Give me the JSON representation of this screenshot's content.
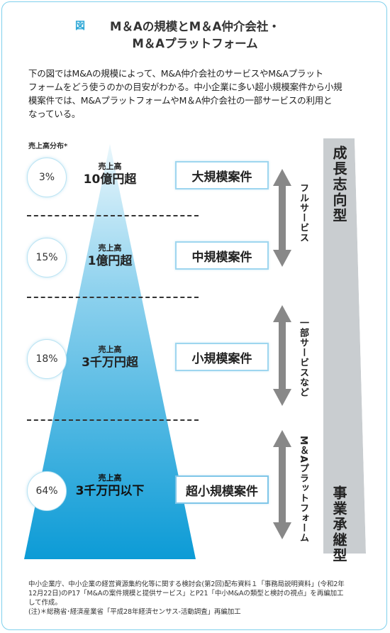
{
  "figure_label": "図",
  "title_line1": "M＆Aの規模とM＆A仲介会社・",
  "title_line2": "M＆Aプラットフォーム",
  "intro_line1": "下の図ではM&Aの規模によって、M&A仲介会社のサービスやM&Aプラット",
  "intro_line2": "フォームをどう使うのかの目安がわかる。中小企業に多い超小規模案件から小規",
  "intro_line3": "模案件では、M&AプラットフォームやM＆A仲介会社の一部サービスの利用と",
  "intro_line4": "なっている。",
  "distribution_label": "売上高分布*",
  "tiers": [
    {
      "share": "3%",
      "sales_label": "売上高",
      "threshold": "10億円超",
      "category": "大規模案件"
    },
    {
      "share": "15%",
      "sales_label": "売上高",
      "threshold": "1億円超",
      "category": "中規模案件"
    },
    {
      "share": "18%",
      "sales_label": "売上高",
      "threshold": "3千万円超",
      "category": "小規模案件"
    },
    {
      "share": "64%",
      "sales_label": "売上高",
      "threshold": "3千万円以下",
      "category": "超小規模案件"
    }
  ],
  "services": {
    "full": "フルサービス",
    "partial": "一部サービスなど",
    "platform": "M＆Aプラットフォーム"
  },
  "orientation": {
    "growth": "成長志向型",
    "succession": "事業承継型"
  },
  "colors": {
    "accent": "#2aa6d6",
    "triangle_top": "#e8f6fc",
    "triangle_bottom": "#0f9fd8",
    "arrow": "#888888",
    "orientation_band": "#c9cdd0"
  },
  "footer_line1": "中小企業庁、中小企業の経営資源集約化等に関する検討会(第2回)配布資料１「事務局説明資料」(令和2年",
  "footer_line2": "12月22日)のP17「M&Aの案件規模と提供サービス」とP21「中小M&Aの類型と検討の視点」を再編加工",
  "footer_line3": "して作成。",
  "footer_note": "(注)＊総務省･経済産業省「平成28年経済センサス-活動調査」再編加工"
}
